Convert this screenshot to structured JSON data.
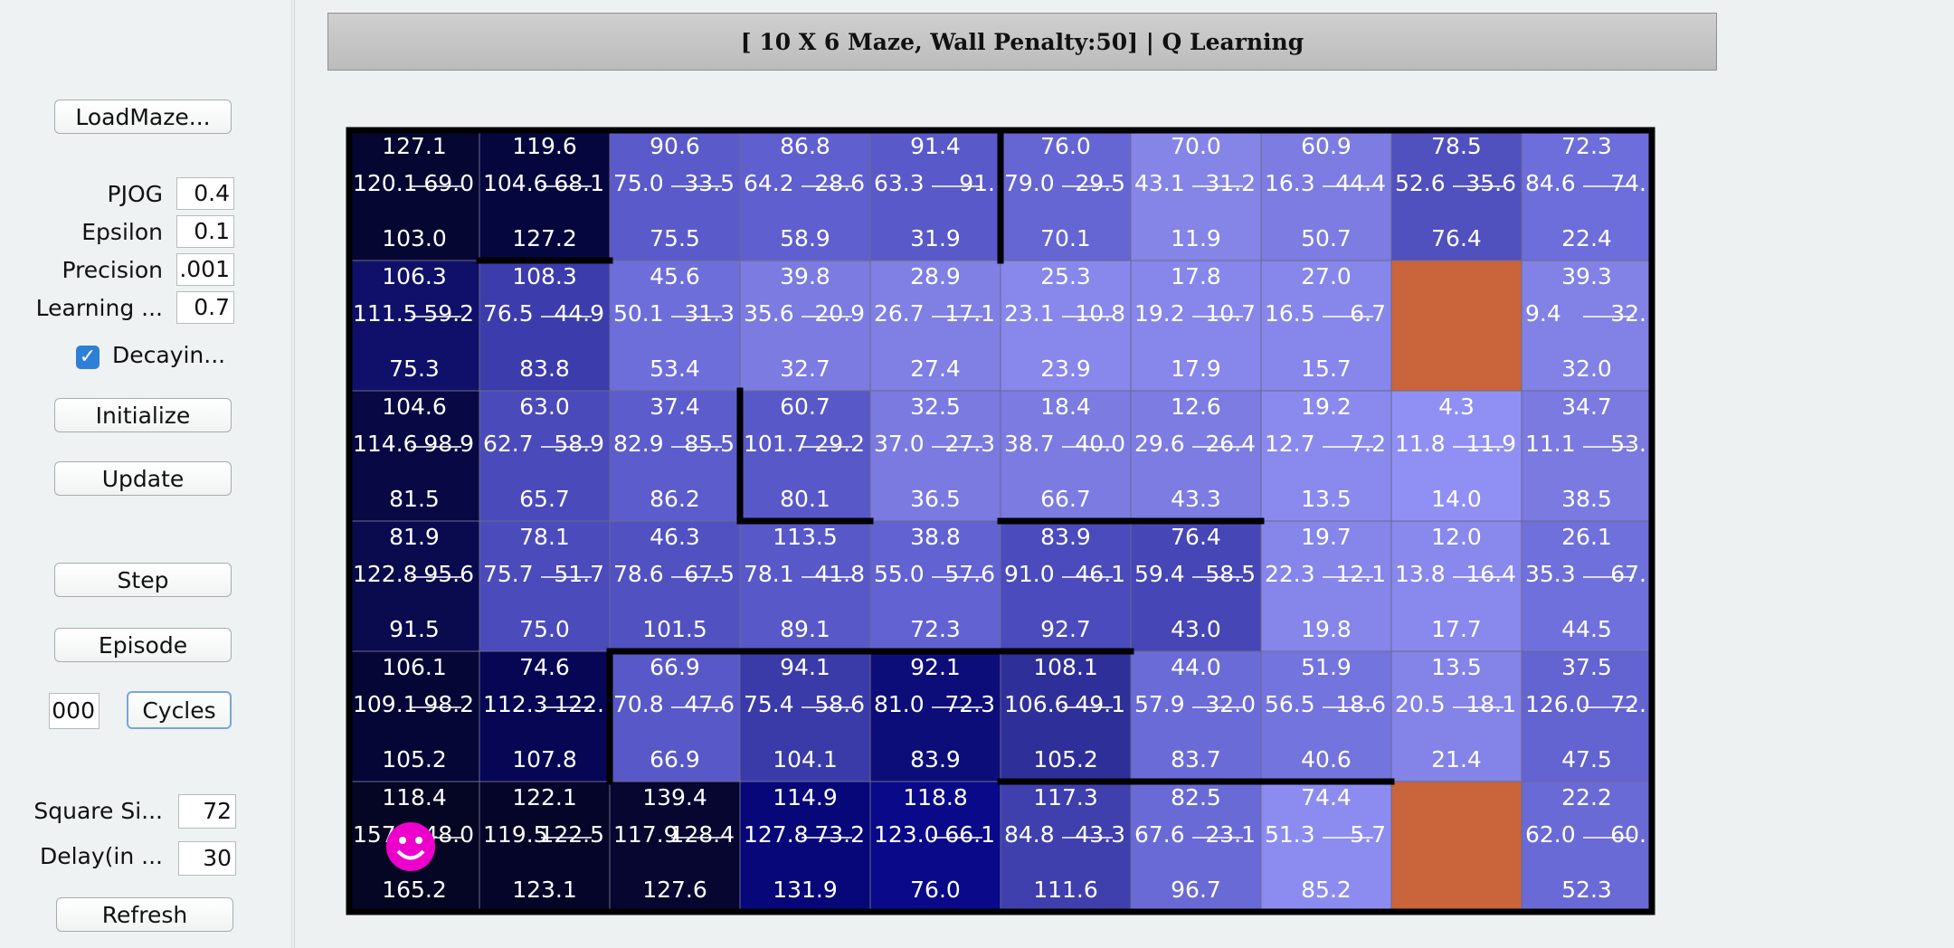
{
  "title": "[ 10 X 6 Maze, Wall Penalty:50] |  Q Learning",
  "buttons": {
    "load": "LoadMaze...",
    "initialize": "Initialize",
    "update": "Update",
    "step": "Step",
    "episode": "Episode",
    "cycles": "Cycles",
    "refresh": "Refresh"
  },
  "params": {
    "pjog": {
      "label": "PJOG",
      "value": "0.4"
    },
    "epsilon": {
      "label": "Epsilon",
      "value": "0.1"
    },
    "precision": {
      "label": "Precision",
      "value": ".001"
    },
    "learning": {
      "label": "Learning ...",
      "value": "0.7"
    },
    "cycles_value": "000",
    "square": {
      "label": "Square Si...",
      "value": "72"
    },
    "delay": {
      "label": "Delay(in ...",
      "value": "30"
    }
  },
  "decaying": {
    "label": "Decayin...",
    "checked": true
  },
  "colors": {
    "goal": "#c9643b",
    "wall": "#000000",
    "smiley": "#ee00cc"
  },
  "icons": {
    "agent": "smiley-face-icon",
    "checkbox": "check-icon"
  },
  "agent_cell": {
    "row": 5,
    "col": 0
  },
  "maze": {
    "cols": 10,
    "rows": 6,
    "cells": [
      [
        {
          "up": "127.1",
          "left": "120.1",
          "right": "69.0",
          "down": "103.0",
          "color": "#060632"
        },
        {
          "up": "119.6",
          "left": "104.6",
          "right": "68.1",
          "down": "127.2",
          "color": "#06063f"
        },
        {
          "up": "90.6",
          "left": "75.0",
          "right": "33.5",
          "down": "75.5",
          "color": "#5a5acb"
        },
        {
          "up": "86.8",
          "left": "64.2",
          "right": "28.6",
          "down": "58.9",
          "color": "#5f5fd0"
        },
        {
          "up": "91.4",
          "left": "63.3",
          "right": "91.",
          "down": "31.9",
          "color": "#5959ca"
        },
        {
          "up": "76.0",
          "left": "79.0",
          "right": "29.5",
          "down": "70.1",
          "color": "#6565d4"
        },
        {
          "up": "70.0",
          "left": "43.1",
          "right": "31.2",
          "down": "11.9",
          "color": "#8585e8"
        },
        {
          "up": "60.9",
          "left": "16.3",
          "right": "44.4",
          "down": "50.7",
          "color": "#7c7ce2"
        },
        {
          "up": "78.5",
          "left": "52.6",
          "right": "35.6",
          "down": "76.4",
          "color": "#5050be"
        },
        {
          "up": "72.3",
          "left": "84.6",
          "right": "74.",
          "down": "22.4",
          "color": "#6d6ddb"
        }
      ],
      [
        {
          "up": "106.3",
          "left": "111.5",
          "right": "59.2",
          "down": "75.3",
          "color": "#10106a"
        },
        {
          "up": "108.3",
          "left": "76.5",
          "right": "44.9",
          "down": "83.8",
          "color": "#3c3cad"
        },
        {
          "up": "45.6",
          "left": "50.1",
          "right": "31.3",
          "down": "53.4",
          "color": "#6e6edb"
        },
        {
          "up": "39.8",
          "left": "35.6",
          "right": "20.9",
          "down": "32.7",
          "color": "#7b7be2"
        },
        {
          "up": "28.9",
          "left": "26.7",
          "right": "17.1",
          "down": "27.4",
          "color": "#7f7fe4"
        },
        {
          "up": "25.3",
          "left": "23.1",
          "right": "10.8",
          "down": "23.9",
          "color": "#8787ec"
        },
        {
          "up": "17.8",
          "left": "19.2",
          "right": "10.7",
          "down": "17.9",
          "color": "#8686eb"
        },
        {
          "up": "27.0",
          "left": "16.5",
          "right": "6.7",
          "down": "15.7",
          "color": "#8686eb"
        },
        {
          "up": "",
          "left": "",
          "right": "",
          "down": "",
          "color": "#c9643b",
          "goal": true
        },
        {
          "up": "39.3",
          "left": "9.4",
          "right": "32.",
          "down": "32.0",
          "color": "#8181e6"
        }
      ],
      [
        {
          "up": "104.6",
          "left": "114.6",
          "right": "98.9",
          "down": "81.5",
          "color": "#080845"
        },
        {
          "up": "63.0",
          "left": "62.7",
          "right": "58.9",
          "down": "65.7",
          "color": "#4a4abb"
        },
        {
          "up": "37.4",
          "left": "82.9",
          "right": "85.5",
          "down": "86.2",
          "color": "#5c5ccd"
        },
        {
          "up": "60.7",
          "left": "101.7",
          "right": "29.2",
          "down": "80.1",
          "color": "#5858c9"
        },
        {
          "up": "32.5",
          "left": "37.0",
          "right": "27.3",
          "down": "36.5",
          "color": "#7a7ae1"
        },
        {
          "up": "18.4",
          "left": "38.7",
          "right": "40.0",
          "down": "66.7",
          "color": "#7b7be2"
        },
        {
          "up": "12.6",
          "left": "29.6",
          "right": "26.4",
          "down": "43.3",
          "color": "#7c7ce3"
        },
        {
          "up": "19.2",
          "left": "12.7",
          "right": "7.2",
          "down": "13.5",
          "color": "#8a8aee"
        },
        {
          "up": "4.3",
          "left": "11.8",
          "right": "11.9",
          "down": "14.0",
          "color": "#9090f4"
        },
        {
          "up": "34.7",
          "left": "11.1",
          "right": "53.",
          "down": "38.5",
          "color": "#7a7ae1"
        }
      ],
      [
        {
          "up": "81.9",
          "left": "122.8",
          "right": "95.6",
          "down": "91.5",
          "color": "#0a0a4e"
        },
        {
          "up": "78.1",
          "left": "75.7",
          "right": "51.7",
          "down": "75.0",
          "color": "#4b4bbc"
        },
        {
          "up": "46.3",
          "left": "78.6",
          "right": "67.5",
          "down": "101.5",
          "color": "#5151c2"
        },
        {
          "up": "113.5",
          "left": "78.1",
          "right": "41.8",
          "down": "89.1",
          "color": "#5858c9"
        },
        {
          "up": "38.8",
          "left": "55.0",
          "right": "57.6",
          "down": "72.3",
          "color": "#6262d3"
        },
        {
          "up": "83.9",
          "left": "91.0",
          "right": "46.1",
          "down": "92.7",
          "color": "#4b4bbd"
        },
        {
          "up": "76.4",
          "left": "59.4",
          "right": "58.5",
          "down": "43.0",
          "color": "#4646b6"
        },
        {
          "up": "19.7",
          "left": "22.3",
          "right": "12.1",
          "down": "19.8",
          "color": "#8585ea"
        },
        {
          "up": "12.0",
          "left": "13.8",
          "right": "16.4",
          "down": "17.7",
          "color": "#8888ed"
        },
        {
          "up": "26.1",
          "left": "35.3",
          "right": "67.",
          "down": "44.5",
          "color": "#7070dc"
        }
      ],
      [
        {
          "up": "106.1",
          "left": "109.1",
          "right": "98.2",
          "down": "105.2",
          "color": "#050536"
        },
        {
          "up": "74.6",
          "left": "112.3",
          "right": "122.",
          "down": "107.8",
          "color": "#060655"
        },
        {
          "up": "66.9",
          "left": "70.8",
          "right": "47.6",
          "down": "66.9",
          "color": "#5858c8"
        },
        {
          "up": "94.1",
          "left": "75.4",
          "right": "58.6",
          "down": "104.1",
          "color": "#3a3aa8"
        },
        {
          "up": "92.1",
          "left": "81.0",
          "right": "72.3",
          "down": "83.9",
          "color": "#0d0d7a"
        },
        {
          "up": "108.1",
          "left": "106.6",
          "right": "49.1",
          "down": "105.2",
          "color": "#2f2f9a"
        },
        {
          "up": "44.0",
          "left": "57.9",
          "right": "32.0",
          "down": "83.7",
          "color": "#6b6bd8"
        },
        {
          "up": "51.9",
          "left": "56.5",
          "right": "18.6",
          "down": "40.6",
          "color": "#7474de"
        },
        {
          "up": "13.5",
          "left": "20.5",
          "right": "18.1",
          "down": "21.4",
          "color": "#8383e8"
        },
        {
          "up": "37.5",
          "left": "126.0",
          "right": "72.",
          "down": "47.5",
          "color": "#6363d2"
        }
      ],
      [
        {
          "up": "118.4",
          "left": "157",
          "right": "148.0",
          "down": "165.2",
          "color": "#050524"
        },
        {
          "up": "122.1",
          "left": "119.5",
          "right": "122.5",
          "down": "123.1",
          "color": "#05052a"
        },
        {
          "up": "139.4",
          "left": "117.9",
          "right": "128.4",
          "down": "127.6",
          "color": "#060630"
        },
        {
          "up": "114.9",
          "left": "127.8",
          "right": "73.2",
          "down": "131.9",
          "color": "#07077a"
        },
        {
          "up": "118.8",
          "left": "123.0",
          "right": "66.1",
          "down": "76.0",
          "color": "#09098a"
        },
        {
          "up": "117.3",
          "left": "84.8",
          "right": "43.3",
          "down": "111.6",
          "color": "#3f3fae"
        },
        {
          "up": "82.5",
          "left": "67.6",
          "right": "23.1",
          "down": "96.7",
          "color": "#6a6ad7"
        },
        {
          "up": "74.4",
          "left": "51.3",
          "right": "5.7",
          "down": "85.2",
          "color": "#8c8cf0"
        },
        {
          "up": "",
          "left": "",
          "right": "",
          "down": "",
          "color": "#c9643b",
          "goal": true
        },
        {
          "up": "22.2",
          "left": "62.0",
          "right": "60.",
          "down": "52.3",
          "color": "#6a6ad7"
        }
      ]
    ]
  }
}
